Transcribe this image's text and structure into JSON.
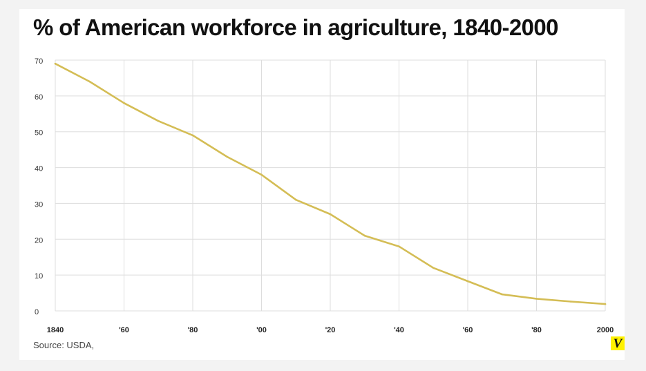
{
  "chart_data": {
    "type": "line",
    "title": "% of American workforce in agriculture, 1840-2000",
    "source": "Source: USDA,",
    "xlabel": "",
    "ylabel": "",
    "xlim": [
      1840,
      2000
    ],
    "ylim": [
      0,
      70
    ],
    "grid": true,
    "line_color": "#d4bd55",
    "grid_color": "#dddddd",
    "y_ticks": [
      {
        "value": 0,
        "label": "0"
      },
      {
        "value": 10,
        "label": "10"
      },
      {
        "value": 20,
        "label": "20"
      },
      {
        "value": 30,
        "label": "30"
      },
      {
        "value": 40,
        "label": "40"
      },
      {
        "value": 50,
        "label": "50"
      },
      {
        "value": 60,
        "label": "60"
      },
      {
        "value": 70,
        "label": "70"
      }
    ],
    "x_ticks": [
      {
        "value": 1840,
        "label": "1840"
      },
      {
        "value": 1860,
        "label": "'60"
      },
      {
        "value": 1880,
        "label": "'80"
      },
      {
        "value": 1900,
        "label": "'00"
      },
      {
        "value": 1920,
        "label": "'20"
      },
      {
        "value": 1940,
        "label": "'40"
      },
      {
        "value": 1960,
        "label": "'60"
      },
      {
        "value": 1980,
        "label": "'80"
      },
      {
        "value": 2000,
        "label": "2000"
      }
    ],
    "series": [
      {
        "x": [
          1840,
          1850,
          1860,
          1870,
          1880,
          1890,
          1900,
          1910,
          1920,
          1930,
          1940,
          1950,
          1960,
          1970,
          1980,
          1990,
          2000
        ],
        "values": [
          69,
          64,
          58,
          53,
          49,
          43,
          38,
          31,
          27,
          21,
          18,
          12,
          8.3,
          4.6,
          3.4,
          2.6,
          1.9
        ]
      }
    ]
  },
  "brand": {
    "logo_letter": "V",
    "logo_color": "#fff200"
  }
}
